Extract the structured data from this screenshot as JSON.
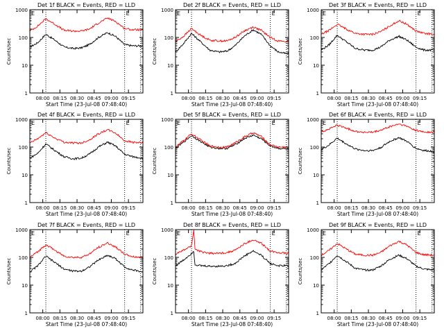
{
  "shared": {
    "ylabel": "Counts/sec",
    "xlabel": "Start Time (23-Jul-08 07:48:40)",
    "yticks": [
      "1",
      "10",
      "100",
      "1000"
    ],
    "xticks": [
      "08:00",
      "08:15",
      "08:30",
      "08:45",
      "09:00",
      "09:15"
    ]
  },
  "colors": {
    "events": "#000000",
    "lld": "#ff0000",
    "marker": "#000000"
  },
  "chart_data": [
    {
      "type": "line",
      "title": "Det 1f BLACK = Events, RED = LLD",
      "ylog": true,
      "ylim": [
        1,
        1000
      ],
      "xlim_minutes_after_start": [
        0,
        99
      ],
      "xticks": [
        "08:00",
        "08:15",
        "08:30",
        "08:45",
        "09:00",
        "09:15"
      ],
      "grid": false,
      "corner_marks": [
        "E",
        "E"
      ],
      "x_minutes_after_start": [
        0,
        7,
        14,
        22,
        30,
        38,
        45,
        52,
        60,
        68,
        75,
        83,
        90,
        99
      ],
      "series": [
        {
          "name": "BLACK = Events",
          "color": "#000000",
          "values": [
            45,
            65,
            130,
            80,
            45,
            40,
            42,
            55,
            100,
            150,
            110,
            55,
            50,
            50
          ]
        },
        {
          "name": "RED = LLD",
          "color": "#ff0000",
          "values": [
            170,
            260,
            470,
            300,
            180,
            170,
            170,
            200,
            330,
            500,
            380,
            210,
            190,
            190
          ]
        }
      ],
      "markers_minutes_after_start": [
        14,
        83,
        97
      ]
    },
    {
      "type": "line",
      "title": "Det 2f BLACK = Events, RED = LLD",
      "ylog": true,
      "ylim": [
        1,
        1000
      ],
      "xlim_minutes_after_start": [
        0,
        99
      ],
      "xticks": [
        "08:00",
        "08:15",
        "08:30",
        "08:45",
        "09:00",
        "09:15"
      ],
      "grid": false,
      "corner_marks": [
        "E",
        "E"
      ],
      "x_minutes_after_start": [
        0,
        7,
        14,
        22,
        30,
        38,
        45,
        52,
        60,
        68,
        75,
        83,
        90,
        99
      ],
      "series": [
        {
          "name": "BLACK = Events",
          "color": "#000000",
          "values": [
            30,
            60,
            140,
            70,
            35,
            30,
            32,
            50,
            110,
            190,
            130,
            50,
            30,
            25
          ]
        },
        {
          "name": "RED = LLD",
          "color": "#ff0000",
          "values": [
            70,
            110,
            210,
            120,
            80,
            75,
            75,
            100,
            170,
            240,
            180,
            100,
            75,
            70
          ]
        }
      ],
      "markers_minutes_after_start": [
        14,
        83,
        97
      ]
    },
    {
      "type": "line",
      "title": "Det 3f BLACK = Events, RED = LLD",
      "ylog": true,
      "ylim": [
        1,
        1000
      ],
      "xlim_minutes_after_start": [
        0,
        99
      ],
      "xticks": [
        "08:00",
        "08:15",
        "08:30",
        "08:45",
        "09:00",
        "09:15"
      ],
      "grid": false,
      "corner_marks": [
        "E",
        "E"
      ],
      "x_minutes_after_start": [
        0,
        7,
        14,
        22,
        30,
        38,
        45,
        52,
        60,
        68,
        75,
        83,
        90,
        99
      ],
      "series": [
        {
          "name": "BLACK = Events",
          "color": "#000000",
          "values": [
            35,
            55,
            120,
            70,
            40,
            35,
            35,
            45,
            80,
            110,
            80,
            45,
            35,
            35
          ]
        },
        {
          "name": "RED = LLD",
          "color": "#ff0000",
          "values": [
            130,
            180,
            300,
            200,
            140,
            130,
            130,
            160,
            260,
            400,
            300,
            170,
            140,
            130
          ]
        }
      ],
      "markers_minutes_after_start": [
        14,
        83,
        97
      ]
    },
    {
      "type": "line",
      "title": "Det 4f BLACK = Events, RED = LLD",
      "ylog": true,
      "ylim": [
        1,
        1000
      ],
      "xlim_minutes_after_start": [
        0,
        99
      ],
      "xticks": [
        "08:00",
        "08:15",
        "08:30",
        "08:45",
        "09:00",
        "09:15"
      ],
      "grid": false,
      "corner_marks": [
        "E",
        "E"
      ],
      "x_minutes_after_start": [
        0,
        7,
        14,
        22,
        30,
        38,
        45,
        52,
        60,
        68,
        75,
        83,
        90,
        99
      ],
      "series": [
        {
          "name": "BLACK = Events",
          "color": "#000000",
          "values": [
            40,
            60,
            130,
            75,
            45,
            38,
            40,
            55,
            100,
            150,
            110,
            55,
            45,
            40
          ]
        },
        {
          "name": "RED = LLD",
          "color": "#ff0000",
          "values": [
            140,
            200,
            330,
            210,
            150,
            140,
            140,
            180,
            300,
            420,
            320,
            170,
            150,
            140
          ]
        }
      ],
      "markers_minutes_after_start": [
        14,
        83,
        97
      ]
    },
    {
      "type": "line",
      "title": "Det 5f BLACK = Events, RED = LLD",
      "ylog": true,
      "ylim": [
        1,
        1000
      ],
      "xlim_minutes_after_start": [
        0,
        99
      ],
      "xticks": [
        "08:00",
        "08:15",
        "08:30",
        "08:45",
        "09:00",
        "09:15"
      ],
      "grid": false,
      "corner_marks": [
        "E",
        "E"
      ],
      "x_minutes_after_start": [
        0,
        7,
        14,
        22,
        30,
        38,
        45,
        52,
        60,
        68,
        75,
        83,
        90,
        99
      ],
      "series": [
        {
          "name": "BLACK = Events",
          "color": "#000000",
          "values": [
            90,
            150,
            260,
            160,
            100,
            90,
            90,
            120,
            200,
            270,
            200,
            110,
            90,
            85
          ]
        },
        {
          "name": "RED = LLD",
          "color": "#ff0000",
          "values": [
            100,
            170,
            300,
            180,
            110,
            100,
            100,
            140,
            230,
            330,
            240,
            120,
            100,
            100
          ]
        }
      ],
      "markers_minutes_after_start": [
        14,
        83,
        97
      ]
    },
    {
      "type": "line",
      "title": "Det 6f BLACK = Events, RED = LLD",
      "ylog": true,
      "ylim": [
        1,
        1000
      ],
      "xlim_minutes_after_start": [
        0,
        99
      ],
      "xticks": [
        "08:00",
        "08:15",
        "08:30",
        "08:45",
        "09:00",
        "09:15"
      ],
      "grid": false,
      "corner_marks": [
        "E",
        "E"
      ],
      "x_minutes_after_start": [
        0,
        7,
        14,
        22,
        30,
        38,
        45,
        52,
        60,
        68,
        75,
        83,
        90,
        99
      ],
      "series": [
        {
          "name": "BLACK = Events",
          "color": "#000000",
          "values": [
            80,
            120,
            210,
            130,
            85,
            75,
            75,
            95,
            160,
            220,
            160,
            90,
            75,
            70
          ]
        },
        {
          "name": "RED = LLD",
          "color": "#ff0000",
          "values": [
            350,
            450,
            620,
            480,
            370,
            340,
            340,
            400,
            540,
            680,
            560,
            400,
            350,
            340
          ]
        }
      ],
      "markers_minutes_after_start": [
        14,
        83,
        97
      ]
    },
    {
      "type": "line",
      "title": "Det 7f BLACK = Events, RED = LLD",
      "ylog": true,
      "ylim": [
        1,
        1000
      ],
      "xlim_minutes_after_start": [
        0,
        99
      ],
      "xticks": [
        "08:00",
        "08:15",
        "08:30",
        "08:45",
        "09:00",
        "09:15"
      ],
      "grid": false,
      "corner_marks": [
        "E",
        "E"
      ],
      "x_minutes_after_start": [
        0,
        7,
        14,
        22,
        30,
        38,
        45,
        52,
        60,
        68,
        75,
        83,
        90,
        99
      ],
      "series": [
        {
          "name": "BLACK = Events",
          "color": "#000000",
          "values": [
            30,
            50,
            110,
            65,
            38,
            32,
            32,
            45,
            80,
            120,
            90,
            45,
            35,
            30
          ]
        },
        {
          "name": "RED = LLD",
          "color": "#ff0000",
          "values": [
            100,
            160,
            290,
            180,
            110,
            100,
            100,
            130,
            230,
            330,
            240,
            130,
            105,
            100
          ]
        }
      ],
      "markers_minutes_after_start": [
        14,
        83,
        97
      ]
    },
    {
      "type": "line",
      "title": "Det 8f BLACK = Events, RED = LLD",
      "ylog": true,
      "ylim": [
        1,
        1000
      ],
      "xlim_minutes_after_start": [
        0,
        99
      ],
      "xticks": [
        "08:00",
        "08:15",
        "08:30",
        "08:45",
        "09:00",
        "09:15"
      ],
      "grid": false,
      "corner_marks": [
        "E",
        "E"
      ],
      "x_minutes_after_start": [
        0,
        7,
        14,
        16,
        17,
        22,
        30,
        38,
        45,
        52,
        60,
        68,
        75,
        83,
        90,
        99
      ],
      "series": [
        {
          "name": "BLACK = Events",
          "color": "#000000",
          "values": [
            50,
            80,
            140,
            170,
            55,
            50,
            48,
            48,
            50,
            60,
            110,
            170,
            120,
            60,
            50,
            50
          ]
        },
        {
          "name": "RED = LLD",
          "color": "#ff0000",
          "values": [
            130,
            180,
            260,
            1000,
            200,
            160,
            140,
            140,
            150,
            180,
            300,
            430,
            320,
            170,
            150,
            140
          ]
        }
      ],
      "markers_minutes_after_start": [
        14,
        83,
        97
      ]
    },
    {
      "type": "line",
      "title": "Det 9f BLACK = Events, RED = LLD",
      "ylog": true,
      "ylim": [
        1,
        1000
      ],
      "xlim_minutes_after_start": [
        0,
        99
      ],
      "xticks": [
        "08:00",
        "08:15",
        "08:30",
        "08:45",
        "09:00",
        "09:15"
      ],
      "grid": false,
      "corner_marks": [
        "E",
        "E"
      ],
      "x_minutes_after_start": [
        0,
        7,
        14,
        22,
        30,
        38,
        45,
        52,
        60,
        68,
        75,
        83,
        90,
        99
      ],
      "series": [
        {
          "name": "BLACK = Events",
          "color": "#000000",
          "values": [
            35,
            60,
            120,
            70,
            40,
            35,
            35,
            48,
            85,
            120,
            90,
            48,
            38,
            35
          ]
        },
        {
          "name": "RED = LLD",
          "color": "#ff0000",
          "values": [
            120,
            180,
            320,
            200,
            130,
            120,
            120,
            150,
            260,
            380,
            280,
            150,
            125,
            120
          ]
        }
      ],
      "markers_minutes_after_start": [
        14,
        83,
        97
      ]
    }
  ]
}
